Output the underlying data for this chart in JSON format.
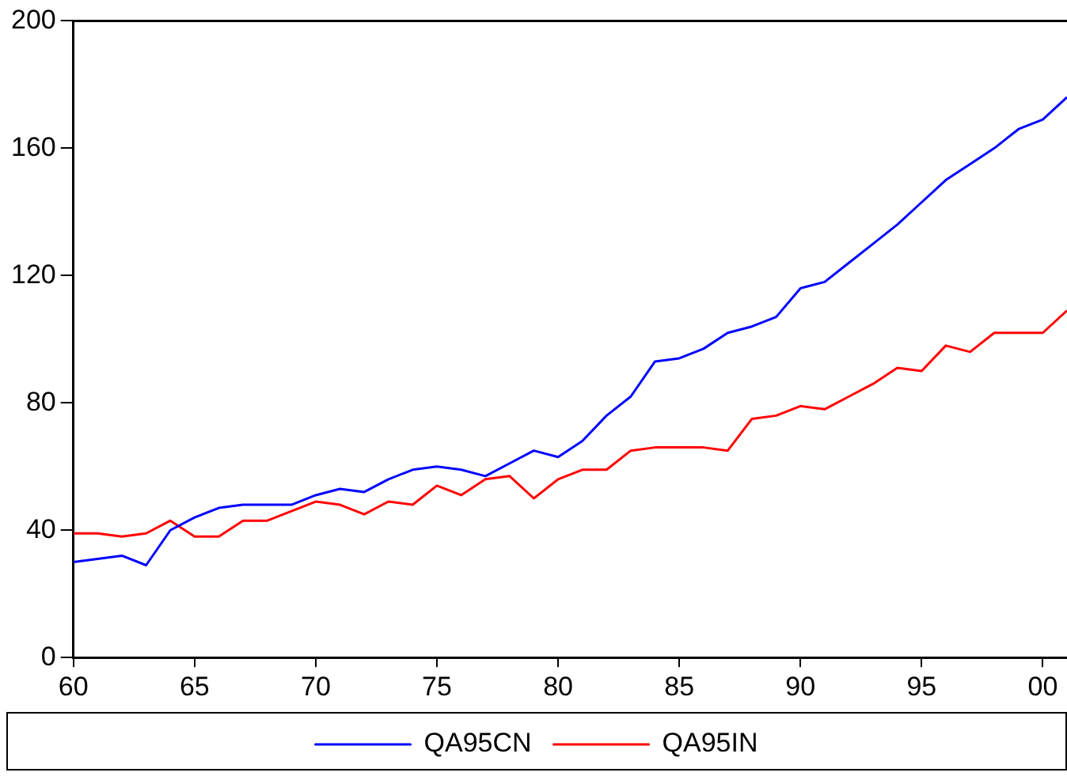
{
  "chart_data": {
    "type": "line",
    "x": [
      1960,
      1961,
      1962,
      1963,
      1964,
      1965,
      1966,
      1967,
      1968,
      1969,
      1970,
      1971,
      1972,
      1973,
      1974,
      1975,
      1976,
      1977,
      1978,
      1979,
      1980,
      1981,
      1982,
      1983,
      1984,
      1985,
      1986,
      1987,
      1988,
      1989,
      1990,
      1991,
      1992,
      1993,
      1994,
      1995,
      1996,
      1997,
      1998,
      1999,
      2000,
      2001
    ],
    "series": [
      {
        "name": "QA95CN",
        "color": "#0000ff",
        "values": [
          30,
          31,
          32,
          29,
          40,
          44,
          47,
          48,
          48,
          48,
          51,
          53,
          52,
          56,
          59,
          60,
          59,
          57,
          61,
          65,
          63,
          68,
          76,
          82,
          93,
          94,
          97,
          102,
          104,
          107,
          116,
          118,
          124,
          130,
          136,
          143,
          150,
          155,
          160,
          166,
          169,
          176
        ]
      },
      {
        "name": "QA95IN",
        "color": "#ff0000",
        "values": [
          39,
          39,
          38,
          39,
          43,
          38,
          38,
          43,
          43,
          46,
          49,
          48,
          45,
          49,
          48,
          54,
          51,
          56,
          57,
          50,
          56,
          59,
          59,
          65,
          66,
          66,
          66,
          65,
          75,
          76,
          79,
          78,
          82,
          86,
          91,
          90,
          98,
          96,
          102,
          102,
          102,
          109
        ]
      }
    ],
    "xlim": [
      1960,
      2001
    ],
    "xticks": [
      {
        "value": 1960,
        "label": "60"
      },
      {
        "value": 1965,
        "label": "65"
      },
      {
        "value": 1970,
        "label": "70"
      },
      {
        "value": 1975,
        "label": "75"
      },
      {
        "value": 1980,
        "label": "80"
      },
      {
        "value": 1985,
        "label": "85"
      },
      {
        "value": 1990,
        "label": "90"
      },
      {
        "value": 1995,
        "label": "95"
      },
      {
        "value": 2000,
        "label": "00"
      }
    ],
    "ylim": [
      0,
      200
    ],
    "yticks": [
      0,
      40,
      80,
      120,
      160,
      200
    ],
    "grid": false,
    "legend": "bottom",
    "marker": "none",
    "line_style": "solid"
  }
}
